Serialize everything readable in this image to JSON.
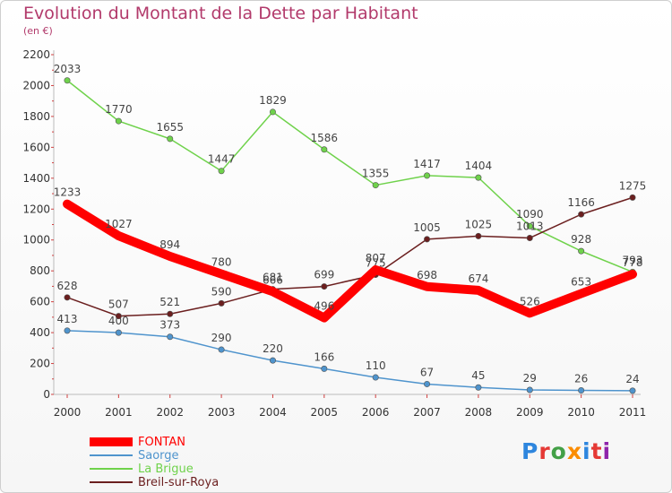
{
  "chart_data": {
    "type": "line",
    "title": "Evolution du Montant de la Dette par Habitant",
    "subtitle": "(en €)",
    "x": [
      "2000",
      "2001",
      "2002",
      "2003",
      "2004",
      "2005",
      "2006",
      "2007",
      "2008",
      "2009",
      "2010",
      "2011"
    ],
    "ylim": [
      0,
      2200
    ],
    "yticks": [
      0,
      200,
      400,
      600,
      800,
      1000,
      1200,
      1400,
      1600,
      1800,
      2000,
      2200
    ],
    "grid": false,
    "legend_position": "bottom-left",
    "series": [
      {
        "name": "Saorge",
        "color": "#4f94cd",
        "values": [
          413,
          400,
          373,
          290,
          220,
          166,
          110,
          67,
          45,
          29,
          26,
          24
        ]
      },
      {
        "name": "La Brigue",
        "color": "#6fd24b",
        "values": [
          2033,
          1770,
          1655,
          1447,
          1829,
          1586,
          1355,
          1417,
          1404,
          1090,
          928,
          793
        ]
      },
      {
        "name": "Breil-sur-Roya",
        "color": "#6b1f1f",
        "values": [
          628,
          507,
          521,
          590,
          681,
          699,
          775,
          1005,
          1025,
          1013,
          1166,
          1275
        ]
      },
      {
        "name": "FONTAN",
        "color": "#ff0000",
        "values": [
          1233,
          1027,
          894,
          780,
          666,
          496,
          807,
          698,
          674,
          526,
          653,
          778
        ]
      }
    ]
  },
  "legend": [
    {
      "label": "FONTAN",
      "color": "#ff0000",
      "thickness": "10"
    },
    {
      "label": "Saorge",
      "color": "#4f94cd",
      "thickness": "2"
    },
    {
      "label": "La Brigue",
      "color": "#6fd24b",
      "thickness": "2"
    },
    {
      "label": "Breil-sur-Roya",
      "color": "#6b1f1f",
      "thickness": "2"
    }
  ],
  "logo": {
    "text": "Proxiti",
    "letter_colors": [
      "#2e86de",
      "#e53935",
      "#43a047",
      "#fb8c00",
      "#2e86de",
      "#e53935",
      "#8e24aa"
    ]
  }
}
